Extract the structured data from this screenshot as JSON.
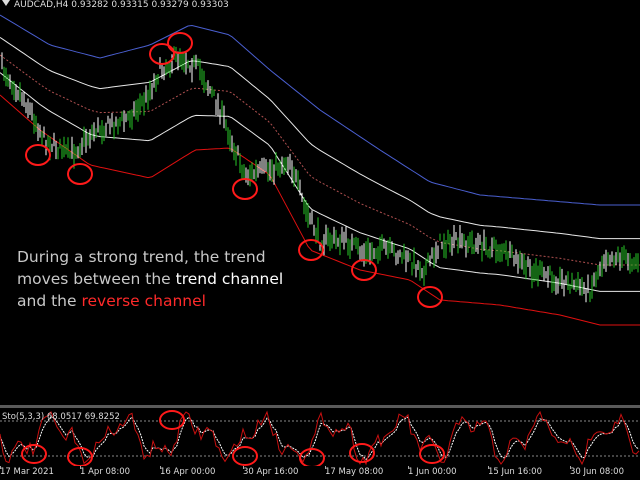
{
  "chart_header": {
    "symbol": "AUDCAD,H4",
    "open": "0.93282",
    "high": "0.93315",
    "low": "0.93279",
    "close": "0.93303"
  },
  "annotation": {
    "line1": "During a strong trend, the trend",
    "line2_prefix": "moves between the ",
    "line2_highlight": "trend channel",
    "line3_prefix": "and the ",
    "line3_highlight": "reverse channel"
  },
  "stochastic": {
    "label": "Sto(5,3,3) 68.0517 69.8252"
  },
  "time_axis": [
    "17 Mar 2021",
    "1 Apr 08:00",
    "16 Apr 00:00",
    "30 Apr 16:00",
    "17 May 08:00",
    "1 Jun 00:00",
    "15 Jun 16:00",
    "30 Jun 08:00"
  ],
  "colors": {
    "background": "#000000",
    "bull_candle": "#28c828",
    "bear_candle": "#ffffff",
    "upper_band": "#4a5fd0",
    "lower_band": "#e01010",
    "inner_band": "#e8e8e8",
    "middle_line": "#b05050",
    "marker": "#ff1a1a",
    "stoch_main": "#c81010",
    "stoch_signal": "#ffffff"
  }
}
